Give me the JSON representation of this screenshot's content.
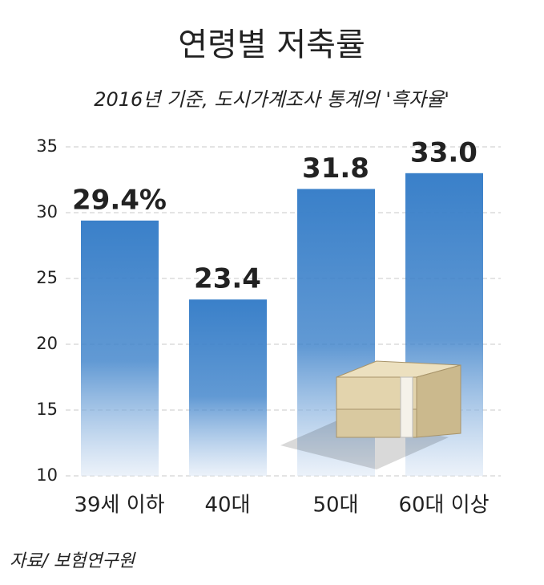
{
  "chart_data": {
    "type": "bar",
    "title": "연령별 저축률",
    "subtitle": "2016년 기준, 도시가계조사 통계의 '흑자율'",
    "source": "자료/ 보험연구원",
    "categories": [
      "39세 이하",
      "40대",
      "50대",
      "60대 이상"
    ],
    "values": [
      29.4,
      23.4,
      31.8,
      33.0
    ],
    "value_labels": [
      "29.4%",
      "23.4",
      "31.8",
      "33.0"
    ],
    "color": "#3a80c9",
    "ylim": [
      10,
      35
    ],
    "yticks": [
      10,
      15,
      20,
      25,
      30,
      35
    ],
    "grid": true
  }
}
